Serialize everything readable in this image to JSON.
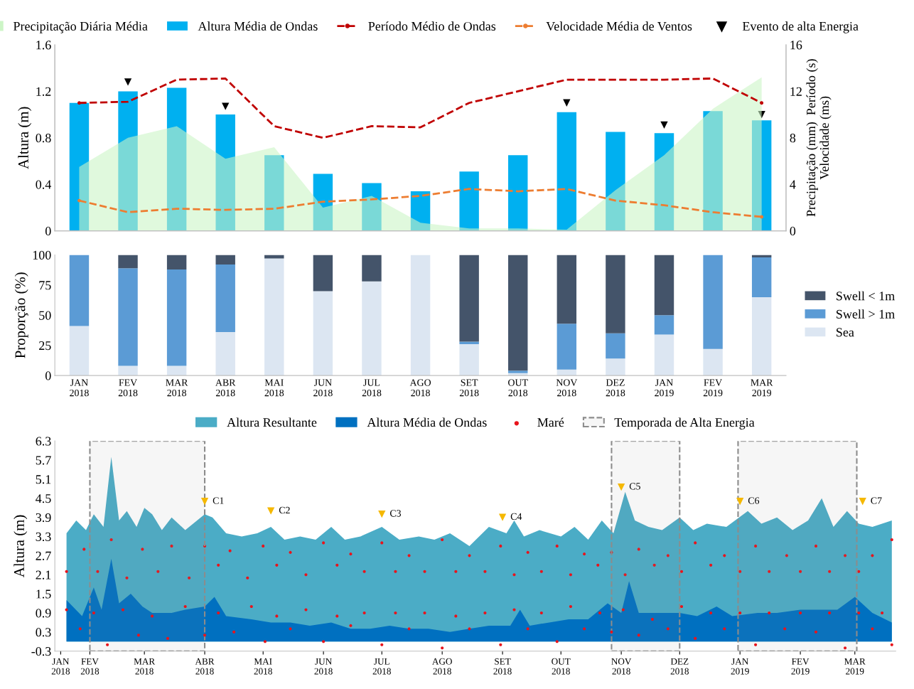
{
  "chart_data": [
    {
      "type": "bar",
      "ylabel": "Altura (m)",
      "y2label": "Precipitação (mm)  Período (s)\nVelocidade (ms)",
      "categories": [
        null,
        null,
        null,
        null,
        null,
        null,
        null,
        null,
        null,
        null,
        null,
        null,
        null,
        null,
        null
      ],
      "ylim": [
        0,
        1.6
      ],
      "yticks": [
        0,
        0.4,
        0.8,
        1.2,
        1.6
      ],
      "y2lim": [
        0,
        16
      ],
      "y2ticks": [
        0,
        4,
        8,
        12,
        16
      ],
      "tick_labels": "y",
      "legend": "top",
      "grid": false,
      "series": [
        {
          "name": "Precipitação Diária Média",
          "type": "area",
          "axis": "y2",
          "color": "#ccf5c6",
          "values": [
            5.5,
            8.0,
            9.0,
            6.2,
            7.2,
            2.0,
            3.0,
            0.7,
            0.2,
            0.2,
            0.1,
            3.5,
            6.5,
            10.5,
            13.2
          ]
        },
        {
          "name": "Altura Média de Ondas",
          "type": "bar",
          "color": "#00b0f0",
          "values": [
            1.1,
            1.2,
            1.23,
            1.0,
            0.65,
            0.49,
            0.41,
            0.34,
            0.51,
            0.65,
            1.02,
            0.85,
            0.84,
            1.03,
            0.95
          ]
        },
        {
          "name": "Período Médio de Ondas",
          "type": "line",
          "axis": "y2",
          "line_style": "dashed",
          "color": "#c00000",
          "values": [
            11,
            11.1,
            13,
            13.1,
            9,
            8,
            9,
            8.9,
            11,
            12,
            13,
            13,
            13,
            13.1,
            11
          ]
        },
        {
          "name": "Velocidade Média de Ventos",
          "type": "line",
          "axis": "y2",
          "line_style": "dashed",
          "color": "#ed7d31",
          "values": [
            2.6,
            1.6,
            1.9,
            1.8,
            1.9,
            2.5,
            2.7,
            3.0,
            3.6,
            3.4,
            3.6,
            2.6,
            2.2,
            1.6,
            1.2
          ]
        },
        {
          "name": "Evento de alta Energia",
          "type": "scatter",
          "marker": "triangle",
          "color": "#000000",
          "values": [
            null,
            1.28,
            null,
            1.07,
            null,
            null,
            null,
            null,
            null,
            null,
            1.1,
            null,
            0.91,
            null,
            1.0
          ]
        }
      ]
    },
    {
      "type": "bar",
      "ylabel": "Proporção (%)",
      "stacked": true,
      "legend": "right",
      "grid": false,
      "categories": [
        "JAN\n2018",
        "FEV\n2018",
        "MAR\n2018",
        "ABR\n2018",
        "MAI\n2018",
        "JUN\n2018",
        "JUL\n2018",
        "AGO\n2018",
        "SET\n2018",
        "OUT\n2018",
        "NOV\n2018",
        "DEZ\n2018",
        "JAN\n2019",
        "FEV\n2019",
        "MAR\n2019"
      ],
      "ylim": [
        0,
        100
      ],
      "yticks": [
        0,
        25,
        50,
        75,
        100
      ],
      "series": [
        {
          "name": "Sea",
          "color": "#dce6f2",
          "values": [
            41,
            8,
            8,
            36,
            97,
            70,
            78,
            100,
            26,
            2,
            5,
            14,
            34,
            22,
            65
          ]
        },
        {
          "name": "Swell > 1m",
          "color": "#5b9bd5",
          "values": [
            59,
            81,
            80,
            56,
            0,
            0,
            0,
            0,
            2,
            2,
            38,
            21,
            16,
            78,
            33
          ]
        },
        {
          "name": "Swell < 1m",
          "color": "#44546a",
          "values": [
            0,
            11,
            12,
            8,
            3,
            30,
            22,
            0,
            72,
            96,
            57,
            65,
            50,
            0,
            2
          ]
        }
      ]
    },
    {
      "type": "area",
      "ylabel": "Altura (m)",
      "legend": "top",
      "grid": false,
      "xlim": [
        "2018-01-14",
        "2019-03-22"
      ],
      "xticks": [
        {
          "value": "2018-01-17",
          "label": "JAN\n2018"
        },
        {
          "value": "2018-02-01",
          "label": "FEV\n2018"
        },
        {
          "value": "2018-03-01",
          "label": "MAR\n2018"
        },
        {
          "value": "2018-04-01",
          "label": "ABR\n2018"
        },
        {
          "value": "2018-05-01",
          "label": "MAI\n2018"
        },
        {
          "value": "2018-06-01",
          "label": "JUN\n2018"
        },
        {
          "value": "2018-07-01",
          "label": "JUL\n2018"
        },
        {
          "value": "2018-08-01",
          "label": "AGO\n2018"
        },
        {
          "value": "2018-09-01",
          "label": "SET\n2018"
        },
        {
          "value": "2018-10-01",
          "label": "OUT\n2018"
        },
        {
          "value": "2018-11-01",
          "label": "NOV\n2018"
        },
        {
          "value": "2018-12-01",
          "label": "DEZ\n2018"
        },
        {
          "value": "2019-01-01",
          "label": "JAN\n2019"
        },
        {
          "value": "2019-02-01",
          "label": "FEV\n2019"
        },
        {
          "value": "2019-03-01",
          "label": "MAR\n2019"
        }
      ],
      "ylim": [
        -0.3,
        6.3
      ],
      "yticks": [
        -0.3,
        0.3,
        0.9,
        1.5,
        2.1,
        2.7,
        3.3,
        3.9,
        4.5,
        5.1,
        5.7,
        6.3
      ],
      "bands": [
        {
          "axis": "x",
          "from": "2018-02-01",
          "to": "2018-04-01",
          "label": "Temporada de Alta Energia",
          "color": "#8c8c8c"
        },
        {
          "axis": "x",
          "from": "2018-10-27",
          "to": "2018-12-01",
          "color": "#8c8c8c"
        },
        {
          "axis": "x",
          "from": "2018-12-31",
          "to": "2019-03-02",
          "color": "#8c8c8c"
        }
      ],
      "annotations": [
        {
          "text": "C1",
          "x": "2018-04-01",
          "y": 4.4
        },
        {
          "text": "C2",
          "x": "2018-05-05",
          "y": 4.1
        },
        {
          "text": "C3",
          "x": "2018-07-01",
          "y": 4.0
        },
        {
          "text": "C4",
          "x": "2018-09-01",
          "y": 3.9
        },
        {
          "text": "C5",
          "x": "2018-11-01",
          "y": 4.85
        },
        {
          "text": "C6",
          "x": "2019-01-01",
          "y": 4.4
        },
        {
          "text": "C7",
          "x": "2019-03-05",
          "y": 4.4
        }
      ],
      "series": [
        {
          "name": "Altura Resultante",
          "type": "area",
          "color": "#4bacc6",
          "x": [
            "2018-01-20",
            "2018-01-25",
            "2018-01-30",
            "2018-02-03",
            "2018-02-08",
            "2018-02-12",
            "2018-02-16",
            "2018-02-20",
            "2018-02-25",
            "2018-03-01",
            "2018-03-05",
            "2018-03-10",
            "2018-03-15",
            "2018-03-22",
            "2018-04-01",
            "2018-04-05",
            "2018-04-12",
            "2018-04-20",
            "2018-04-28",
            "2018-05-05",
            "2018-05-12",
            "2018-05-20",
            "2018-05-28",
            "2018-06-05",
            "2018-06-12",
            "2018-06-20",
            "2018-07-01",
            "2018-07-10",
            "2018-07-20",
            "2018-07-28",
            "2018-08-05",
            "2018-08-15",
            "2018-08-25",
            "2018-09-03",
            "2018-09-07",
            "2018-09-12",
            "2018-09-20",
            "2018-10-01",
            "2018-10-08",
            "2018-10-15",
            "2018-10-22",
            "2018-10-28",
            "2018-11-03",
            "2018-11-08",
            "2018-11-15",
            "2018-11-22",
            "2018-12-01",
            "2018-12-08",
            "2018-12-15",
            "2018-12-25",
            "2019-01-05",
            "2019-01-12",
            "2019-01-20",
            "2019-01-28",
            "2019-02-05",
            "2019-02-12",
            "2019-02-18",
            "2019-02-25",
            "2019-03-03",
            "2019-03-10",
            "2019-03-20"
          ],
          "values": [
            3.4,
            3.8,
            3.5,
            4.0,
            3.6,
            5.8,
            3.8,
            4.1,
            3.6,
            4.2,
            4.0,
            3.5,
            3.9,
            3.5,
            4.0,
            3.9,
            3.4,
            3.3,
            3.4,
            3.6,
            3.2,
            3.3,
            3.2,
            3.6,
            3.2,
            3.3,
            3.6,
            3.2,
            3.3,
            3.2,
            3.4,
            3.0,
            3.6,
            3.4,
            3.8,
            3.3,
            3.5,
            3.3,
            3.6,
            3.2,
            3.8,
            3.4,
            4.7,
            3.8,
            3.6,
            3.5,
            3.9,
            3.5,
            3.7,
            3.6,
            4.1,
            3.7,
            3.9,
            3.5,
            3.8,
            4.5,
            3.6,
            4.1,
            3.7,
            3.6,
            3.8
          ]
        },
        {
          "name": "Altura Média de Ondas",
          "type": "area",
          "color": "#0070c0",
          "x": [
            "2018-01-20",
            "2018-01-28",
            "2018-02-03",
            "2018-02-07",
            "2018-02-12",
            "2018-02-16",
            "2018-02-22",
            "2018-02-28",
            "2018-03-05",
            "2018-03-15",
            "2018-03-22",
            "2018-04-01",
            "2018-04-06",
            "2018-04-12",
            "2018-04-25",
            "2018-05-05",
            "2018-05-15",
            "2018-05-25",
            "2018-06-05",
            "2018-06-15",
            "2018-06-25",
            "2018-07-05",
            "2018-07-15",
            "2018-07-25",
            "2018-08-05",
            "2018-08-15",
            "2018-08-25",
            "2018-09-05",
            "2018-09-10",
            "2018-09-15",
            "2018-09-25",
            "2018-10-05",
            "2018-10-15",
            "2018-10-25",
            "2018-11-01",
            "2018-11-05",
            "2018-11-10",
            "2018-11-20",
            "2018-12-01",
            "2018-12-10",
            "2018-12-20",
            "2018-12-28",
            "2019-01-10",
            "2019-01-20",
            "2019-02-01",
            "2019-02-10",
            "2019-02-20",
            "2019-03-01",
            "2019-03-10",
            "2019-03-20"
          ],
          "values": [
            1.3,
            0.8,
            1.7,
            1.0,
            2.6,
            1.2,
            1.5,
            1.1,
            0.9,
            0.9,
            1.0,
            1.1,
            1.4,
            0.8,
            0.7,
            0.6,
            0.6,
            0.5,
            0.6,
            0.4,
            0.4,
            0.5,
            0.4,
            0.4,
            0.3,
            0.4,
            0.5,
            0.5,
            1.0,
            0.5,
            0.6,
            0.7,
            0.7,
            1.2,
            0.9,
            1.9,
            0.9,
            0.9,
            0.9,
            0.8,
            1.1,
            0.8,
            0.9,
            0.9,
            1.0,
            1.0,
            1.0,
            1.4,
            0.9,
            0.6
          ]
        },
        {
          "name": "Maré",
          "type": "scatter",
          "marker": "circle",
          "color": "#e8141c",
          "x": [
            "2018-01-20",
            "2018-01-29",
            "2018-02-05",
            "2018-02-12",
            "2018-02-20",
            "2018-02-28",
            "2018-03-08",
            "2018-03-15",
            "2018-03-24",
            "2018-04-01",
            "2018-04-08",
            "2018-04-14",
            "2018-04-23",
            "2018-05-01",
            "2018-05-08",
            "2018-05-15",
            "2018-05-23",
            "2018-06-01",
            "2018-06-08",
            "2018-06-15",
            "2018-06-22",
            "2018-07-01",
            "2018-07-08",
            "2018-07-15",
            "2018-07-23",
            "2018-08-01",
            "2018-08-08",
            "2018-08-15",
            "2018-08-23",
            "2018-08-31",
            "2018-09-07",
            "2018-09-14",
            "2018-09-21",
            "2018-09-29",
            "2018-10-06",
            "2018-10-13",
            "2018-10-20",
            "2018-10-27",
            "2018-11-03",
            "2018-11-10",
            "2018-11-18",
            "2018-11-25",
            "2018-12-02",
            "2018-12-09",
            "2018-12-17",
            "2018-12-24",
            "2019-01-01",
            "2019-01-09",
            "2019-01-16",
            "2019-01-25",
            "2019-02-01",
            "2019-02-09",
            "2019-02-16",
            "2019-02-24",
            "2019-03-03",
            "2019-03-10",
            "2019-03-20"
          ],
          "values": [
            2.2,
            2.9,
            2.2,
            3.2,
            2.0,
            2.9,
            2.2,
            3.0,
            2.0,
            3.0,
            2.4,
            2.85,
            2.0,
            3.0,
            2.4,
            2.8,
            2.1,
            3.1,
            2.4,
            2.75,
            2.2,
            3.1,
            2.2,
            2.7,
            2.2,
            3.2,
            2.2,
            2.7,
            2.2,
            3.0,
            2.1,
            2.8,
            2.2,
            3.0,
            2.1,
            2.75,
            2.4,
            2.8,
            2.1,
            2.9,
            2.4,
            2.7,
            2.2,
            3.1,
            2.4,
            2.7,
            2.2,
            3.0,
            2.2,
            2.7,
            2.2,
            3.0,
            2.2,
            2.7,
            2.2,
            2.7,
            3.2
          ]
        },
        {
          "type": "scatter",
          "marker": "circle",
          "color": "#e8141c",
          "x": [
            "2018-01-20",
            "2018-01-27",
            "2018-02-03",
            "2018-02-10",
            "2018-02-18",
            "2018-02-26",
            "2018-03-05",
            "2018-03-13",
            "2018-03-22",
            "2018-04-01",
            "2018-04-08",
            "2018-04-16",
            "2018-04-25",
            "2018-05-02",
            "2018-05-08",
            "2018-05-15",
            "2018-05-23",
            "2018-06-01",
            "2018-06-08",
            "2018-06-15",
            "2018-06-22",
            "2018-07-01",
            "2018-07-08",
            "2018-07-15",
            "2018-07-23",
            "2018-08-01",
            "2018-08-08",
            "2018-08-15",
            "2018-08-23",
            "2018-08-31",
            "2018-09-07",
            "2018-09-14",
            "2018-09-21",
            "2018-09-29",
            "2018-10-06",
            "2018-10-13",
            "2018-10-21",
            "2018-10-27",
            "2018-11-02",
            "2018-11-10",
            "2018-11-17",
            "2018-11-25",
            "2018-12-02",
            "2018-12-09",
            "2018-12-17",
            "2018-12-24",
            "2019-01-01",
            "2019-01-09",
            "2019-01-16",
            "2019-01-24",
            "2019-02-01",
            "2019-02-09",
            "2019-02-16",
            "2019-02-24",
            "2019-03-03",
            "2019-03-10",
            "2019-03-15",
            "2019-03-20"
          ],
          "values": [
            1.0,
            0.4,
            0.9,
            -0.1,
            1.0,
            0.2,
            0.8,
            0.1,
            1.1,
            0.2,
            0.9,
            0.3,
            1.1,
            0.0,
            0.8,
            0.4,
            1.0,
            0.0,
            0.8,
            0.5,
            0.9,
            -0.1,
            0.9,
            0.4,
            0.9,
            -0.2,
            0.8,
            0.4,
            0.9,
            -0.1,
            1.0,
            0.4,
            0.9,
            0.0,
            1.1,
            0.4,
            0.9,
            0.3,
            1.0,
            0.2,
            0.7,
            0.4,
            1.1,
            0.1,
            0.9,
            0.4,
            0.9,
            -0.1,
            0.9,
            0.4,
            0.9,
            0.3,
            0.9,
            -0.2,
            0.9,
            0.4,
            0.9,
            -0.1
          ]
        },
        {
          "type": "scatter",
          "marker": "triangle",
          "color": "#f5b800",
          "x": [
            "2018-04-01",
            "2018-05-05",
            "2018-07-01",
            "2018-09-01",
            "2018-11-01",
            "2019-01-01",
            "2019-03-05"
          ],
          "values": [
            4.4,
            4.1,
            4.0,
            3.9,
            4.85,
            4.4,
            4.4
          ]
        }
      ]
    }
  ]
}
